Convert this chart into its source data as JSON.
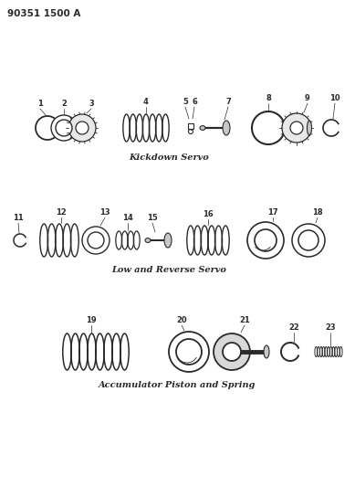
{
  "title_code": "90351 1500 A",
  "bg_color": "#ffffff",
  "line_color": "#2a2a2a",
  "section1_label": "Kickdown Servo",
  "section2_label": "Low and Reverse Servo",
  "section3_label": "Accumulator Piston and Spring",
  "label_fontsize": 7,
  "number_fontsize": 6,
  "code_fontsize": 7.5,
  "figw": 3.89,
  "figh": 5.33,
  "dpi": 100
}
